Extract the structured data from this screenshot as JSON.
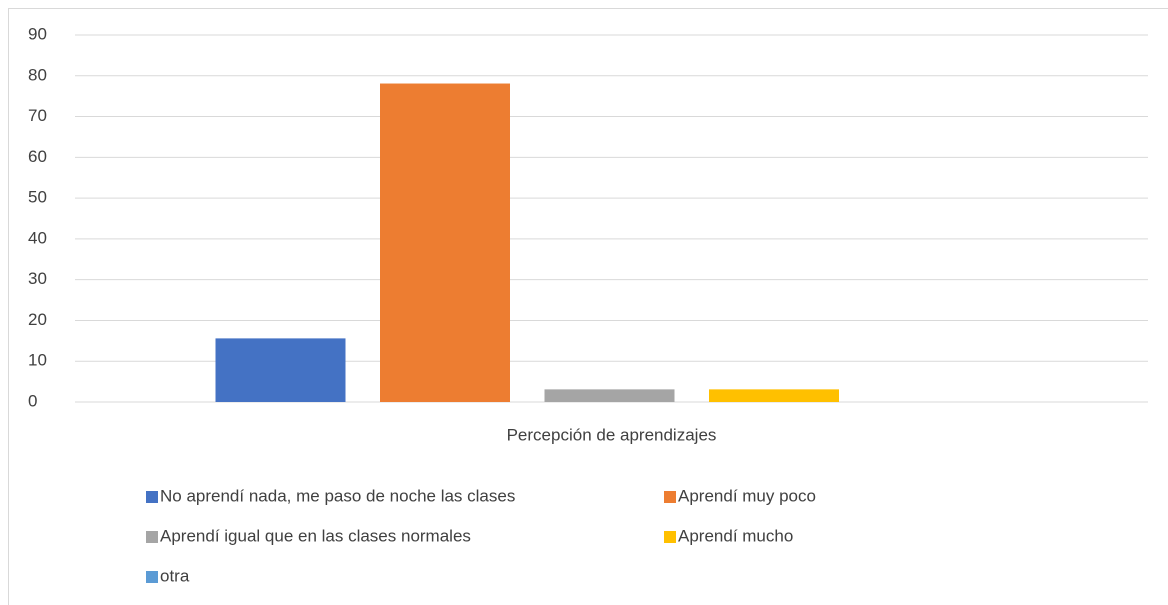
{
  "chart_data": {
    "type": "bar",
    "categories": [
      "Percepción de aprendizajes"
    ],
    "series": [
      {
        "name": "No aprendí nada, me paso de noche las clases",
        "color": "#4472c4",
        "values": [
          15.6
        ]
      },
      {
        "name": "Aprendí muy poco",
        "color": "#ed7d31",
        "values": [
          78.1
        ]
      },
      {
        "name": "Aprendí igual que en las clases normales",
        "color": "#a5a5a5",
        "values": [
          3.1
        ]
      },
      {
        "name": "Aprendí mucho",
        "color": "#ffc000",
        "values": [
          3.1
        ]
      },
      {
        "name": "otra",
        "color": "#5b9bd5",
        "values": [
          0
        ]
      }
    ],
    "ylim": [
      0,
      90
    ],
    "yticks": [
      0,
      10,
      20,
      30,
      40,
      50,
      60,
      70,
      80,
      90
    ],
    "grid": true,
    "legend": "bottom"
  }
}
